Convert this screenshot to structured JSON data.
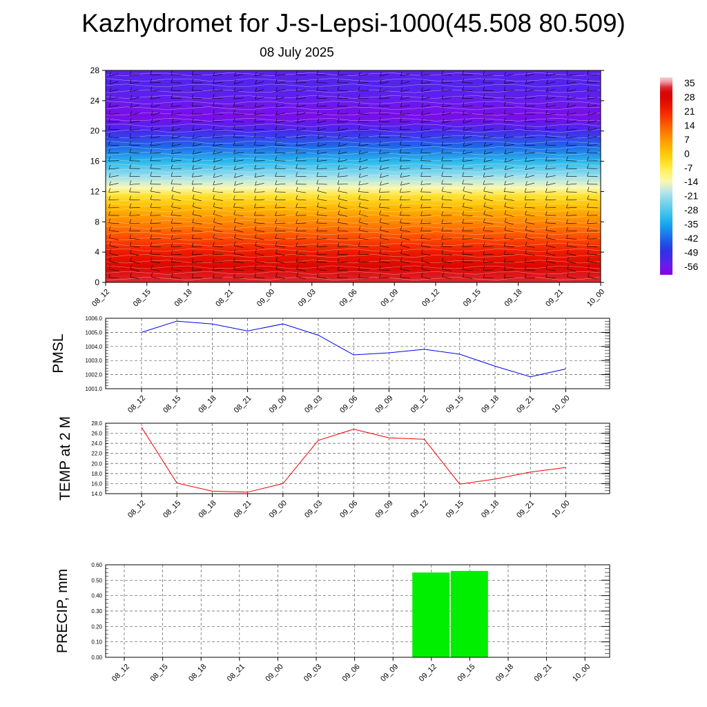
{
  "title": "Kazhydromet for J-s-Lepsi-1000(45.508 80.509)",
  "subtitle": "08 July 2025",
  "chart_data": [
    {
      "type": "heatmap",
      "title": "",
      "ylabel": "",
      "x_ticks": [
        "08_12",
        "08_15",
        "08_18",
        "08_21",
        "09_00",
        "09_03",
        "09_06",
        "09_09",
        "09_12",
        "09_15",
        "09_18",
        "09_21",
        "10_00"
      ],
      "y_ticks": [
        0,
        4,
        8,
        12,
        16,
        20,
        24,
        28
      ],
      "ylim": [
        0,
        28
      ],
      "temperature_by_level": [
        {
          "level": 0,
          "value": 33
        },
        {
          "level": 2,
          "value": 28
        },
        {
          "level": 4,
          "value": 23
        },
        {
          "level": 6,
          "value": 16
        },
        {
          "level": 8,
          "value": 9
        },
        {
          "level": 10,
          "value": 2
        },
        {
          "level": 11.5,
          "value": -5
        },
        {
          "level": 12.5,
          "value": -14
        },
        {
          "level": 14,
          "value": -21
        },
        {
          "level": 16,
          "value": -32
        },
        {
          "level": 18,
          "value": -42
        },
        {
          "level": 20,
          "value": -52
        },
        {
          "level": 22,
          "value": -58
        },
        {
          "level": 24,
          "value": -55
        },
        {
          "level": 26,
          "value": -53
        },
        {
          "level": 28,
          "value": -54
        }
      ],
      "colorbar": {
        "labels": [
          "35",
          "28",
          "21",
          "14",
          "7",
          "0",
          "-7",
          "-14",
          "-21",
          "-28",
          "-35",
          "-42",
          "-49",
          "-56"
        ],
        "min": -60,
        "max": 38
      },
      "wind_barbs": "shown"
    },
    {
      "type": "line",
      "ylabel": "PMSL",
      "x": [
        "08_12",
        "08_15",
        "08_18",
        "08_21",
        "09_00",
        "09_03",
        "09_06",
        "09_09",
        "09_12",
        "09_15",
        "09_18",
        "09_21",
        "10_00"
      ],
      "y_ticks": [
        "1001.0",
        "1002.0",
        "1003.0",
        "1004.0",
        "1005.0",
        "1006.0"
      ],
      "ylim": [
        1001,
        1006
      ],
      "color": "#0000ee",
      "values": [
        1005.0,
        1005.8,
        1005.6,
        1005.1,
        1005.6,
        1004.8,
        1003.4,
        1003.55,
        1003.8,
        1003.45,
        1002.6,
        1001.85,
        1002.4
      ]
    },
    {
      "type": "line",
      "ylabel": "TEMP at 2 M",
      "x": [
        "08_12",
        "08_15",
        "08_18",
        "08_21",
        "09_00",
        "09_03",
        "09_06",
        "09_09",
        "09_12",
        "09_15",
        "09_18",
        "09_21",
        "10_00"
      ],
      "y_ticks": [
        "14.0",
        "16.0",
        "18.0",
        "20.0",
        "22.0",
        "24.0",
        "26.0",
        "28.0"
      ],
      "ylim": [
        14,
        28
      ],
      "color": "#ee0000",
      "values": [
        27.2,
        16.1,
        14.5,
        14.3,
        16.0,
        24.6,
        26.8,
        25.1,
        24.8,
        15.9,
        16.9,
        18.3,
        19.2
      ]
    },
    {
      "type": "bar",
      "ylabel": "PRECIP, mm",
      "x": [
        "08_12",
        "08_15",
        "08_18",
        "08_21",
        "09_00",
        "09_03",
        "09_06",
        "09_09",
        "09_12",
        "09_15",
        "09_18",
        "09_21",
        "10_00"
      ],
      "y_ticks": [
        "0.00",
        "0.10",
        "0.20",
        "0.30",
        "0.40",
        "0.50",
        "0.60"
      ],
      "ylim": [
        0,
        0.6
      ],
      "color": "#00ee00",
      "values": [
        0,
        0,
        0,
        0,
        0,
        0,
        0,
        0.55,
        0.56,
        0,
        0,
        0,
        0
      ]
    }
  ]
}
